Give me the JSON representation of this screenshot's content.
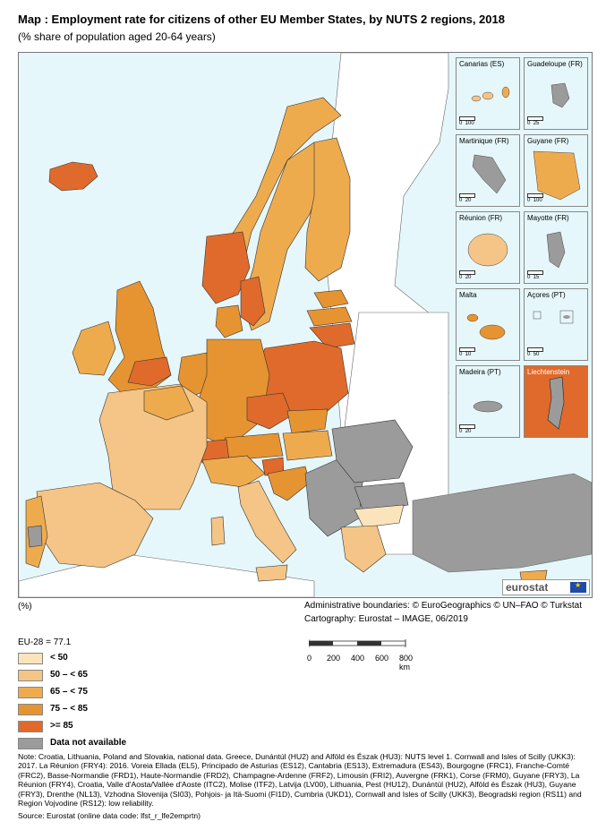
{
  "title": "Map : Employment rate for citizens of other EU Member States, by NUTS 2 regions, 2018",
  "subtitle": "(% share of population aged 20-64 years)",
  "unit": "(%)",
  "admin_boundaries": "Administrative boundaries: © EuroGeographics © UN–FAO © Turkstat",
  "cartography": "Cartography: Eurostat – IMAGE, 06/2019",
  "eu28": "EU-28 = 77.1",
  "legend": [
    {
      "label": "< 50",
      "color": "#fbe3bc"
    },
    {
      "label": "50 – < 65",
      "color": "#f4c586"
    },
    {
      "label": "65 – < 75",
      "color": "#eeab4e"
    },
    {
      "label": "75 – < 85",
      "color": "#e69431"
    },
    {
      "label": ">= 85",
      "color": "#e06a2b"
    },
    {
      "label": "Data not available",
      "color": "#9b9b9b"
    }
  ],
  "scale": {
    "ticks": [
      "0",
      "200",
      "400",
      "600",
      "800 km"
    ]
  },
  "insets": [
    {
      "label": "Canarias (ES)",
      "scale": [
        "0",
        "100"
      ]
    },
    {
      "label": "Guadeloupe (FR)",
      "scale": [
        "0",
        "25"
      ]
    },
    {
      "label": "Martinique (FR)",
      "scale": [
        "0",
        "20"
      ]
    },
    {
      "label": "Guyane (FR)",
      "scale": [
        "0",
        "100"
      ]
    },
    {
      "label": "Réunion (FR)",
      "scale": [
        "0",
        "20"
      ]
    },
    {
      "label": "Mayotte (FR)",
      "scale": [
        "0",
        "15"
      ]
    },
    {
      "label": "Malta",
      "scale": [
        "0",
        "10"
      ]
    },
    {
      "label": "Açores (PT)",
      "scale": [
        "0",
        "50"
      ]
    },
    {
      "label": "Madeira (PT)",
      "scale": [
        "0",
        "20"
      ]
    },
    {
      "label": "Liechtenstein",
      "scale": [
        "",
        ""
      ]
    }
  ],
  "logo": {
    "text": "eurostat"
  },
  "note": "Note: Croatia, Lithuania, Poland and Slovakia, national data. Greece, Dunántúl (HU2) and Alföld és Észak (HU3): NUTS level 1. Cornwall and Isles of Scilly (UKK3): 2017. La Réunion (FRY4): 2016. Voreia Ellada (EL5), Principado de Asturias (ES12), Cantabria (ES13), Extremadura (ES43), Bourgogne (FRC1), Franche-Comté (FRC2), Basse-Normandie (FRD1), Haute-Normandie (FRD2), Champagne-Ardenne (FRF2), Limousin (FRI2), Auvergne (FRK1), Corse (FRM0), Guyane (FRY3), La Réunion (FRY4), Croatia, Valle d'Aosta/Vallée d'Aoste (ITC2), Molise (ITF2), Latvija (LV00), Lithuania, Pest (HU12), Dunántúl (HU2), Alföld és Észak (HU3), Guyane (FRY3), Drenthe (NL13), Vzhodna Slovenija (SI03), Pohjois- ja Itä-Suomi (FI1D), Cumbria (UKD1), Cornwall and Isles of Scilly (UKK3), Beogradski region (RS11) and Region Vojvodine (RS12): low reliability.",
  "source": "Source: Eurostat (online data code: lfst_r_lfe2emprtn)"
}
